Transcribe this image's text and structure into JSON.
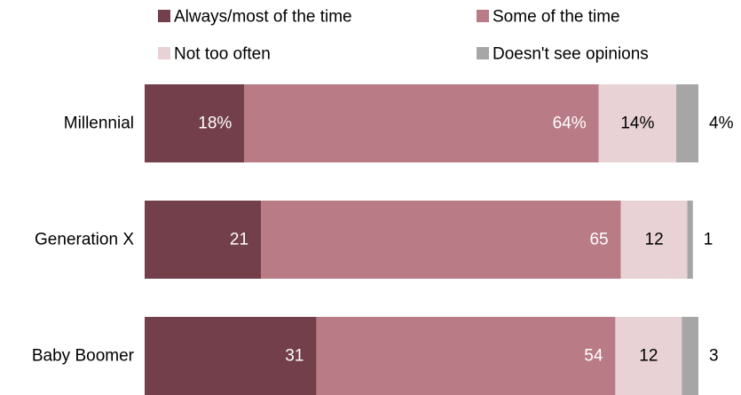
{
  "chart_data": {
    "type": "bar",
    "orientation": "horizontal",
    "stacked": true,
    "legend_position": "top",
    "grid": false,
    "xlim": [
      0,
      100
    ],
    "categories": [
      "Millennial",
      "Generation X",
      "Baby Boomer"
    ],
    "series": [
      {
        "name": "Always/most of the time",
        "color": "#733f4b",
        "label_color": "#ffffff",
        "values": [
          18,
          21,
          31
        ],
        "labels": [
          "18%",
          "21",
          "31"
        ]
      },
      {
        "name": "Some of the time",
        "color": "#b97c86",
        "label_color": "#ffffff",
        "values": [
          64,
          65,
          54
        ],
        "labels": [
          "64%",
          "65",
          "54"
        ]
      },
      {
        "name": "Not too often",
        "color": "#e8d2d5",
        "label_color": "#000000",
        "values": [
          14,
          12,
          12
        ],
        "labels": [
          "14%",
          "12",
          "12"
        ]
      },
      {
        "name": "Doesn't see opinions",
        "color": "#a6a6a6",
        "label_color": "#000000",
        "values": [
          4,
          1,
          3
        ],
        "labels": [
          "4%",
          "1",
          "3"
        ]
      }
    ]
  }
}
